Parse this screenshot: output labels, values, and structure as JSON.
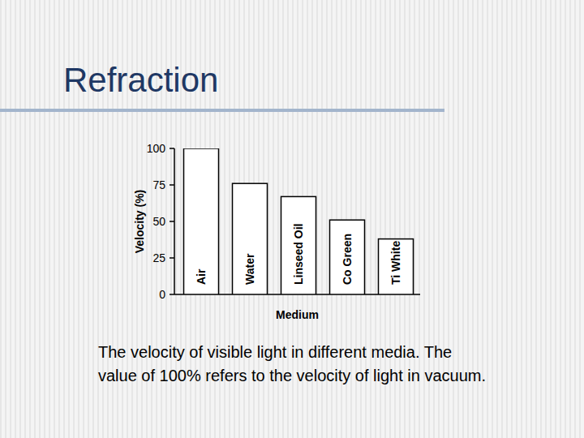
{
  "chart_data": {
    "type": "bar",
    "title": "Refraction",
    "caption": "The velocity of visible light in different media. The value of 100% refers to the velocity of light in vacuum.",
    "x_label": "Medium",
    "y_label": "Velocity (%)",
    "categories": [
      "Air",
      "Water",
      "Linseed Oil",
      "Co Green",
      "Ti White"
    ],
    "values": [
      100,
      76,
      67,
      51,
      38
    ],
    "color": "#ffffff",
    "ylim": [
      0,
      100
    ],
    "yticks": [
      0,
      25,
      50,
      75,
      100
    ],
    "grid": false
  }
}
